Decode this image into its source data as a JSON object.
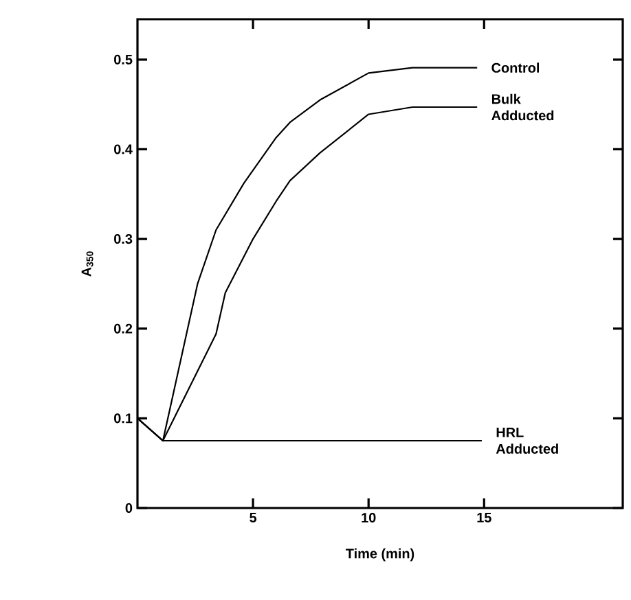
{
  "chart_data": {
    "type": "line",
    "xlabel": "Time (min)",
    "ylabel": "A$_{350}$",
    "xlim": [
      0,
      21
    ],
    "ylim": [
      0,
      0.545
    ],
    "xticks": [
      5,
      10,
      15
    ],
    "yticks": [
      0,
      0.1,
      0.2,
      0.3,
      0.4,
      0.5
    ],
    "grid": false,
    "legend": false,
    "marker": "none",
    "line_style": "solid",
    "series": [
      {
        "name": "Control",
        "color": "#000000",
        "x": [
          0,
          1.1,
          2.6,
          3.4,
          4.6,
          6.0,
          6.6,
          7.9,
          10,
          11.9,
          14.7
        ],
        "values": [
          0.1,
          0.075,
          0.25,
          0.31,
          0.362,
          0.413,
          0.43,
          0.455,
          0.485,
          0.491,
          0.491
        ]
      },
      {
        "name": "Bulk Adducted",
        "color": "#000000",
        "x": [
          0,
          1.1,
          3.4,
          3.8,
          5.0,
          6.0,
          6.6,
          7.9,
          10,
          11.9,
          14.7
        ],
        "values": [
          0.1,
          0.075,
          0.194,
          0.24,
          0.3,
          0.342,
          0.365,
          0.396,
          0.439,
          0.447,
          0.447
        ]
      },
      {
        "name": "HRL Adducted",
        "color": "#000000",
        "x": [
          0,
          1.1,
          14.9
        ],
        "values": [
          0.1,
          0.075,
          0.075
        ]
      }
    ]
  }
}
